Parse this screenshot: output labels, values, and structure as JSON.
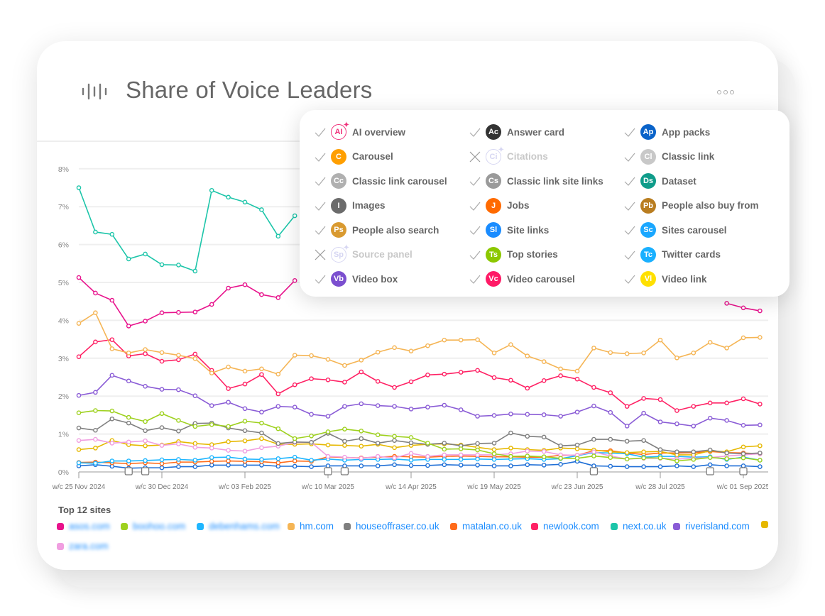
{
  "header": {
    "title": "Share of Voice Leaders",
    "icon": "sound-bars-icon",
    "menu_icon": "more-dots-icon"
  },
  "feature_filter": {
    "items": [
      {
        "abbr": "AI",
        "label": "AI overview",
        "color": "#f0307a",
        "enabled": true,
        "style": "outline",
        "sparkle": true
      },
      {
        "abbr": "Ac",
        "label": "Answer card",
        "color": "#333333",
        "enabled": true
      },
      {
        "abbr": "Ap",
        "label": "App packs",
        "color": "#0a63c9",
        "enabled": true
      },
      {
        "abbr": "C",
        "label": "Carousel",
        "color": "#ff9f00",
        "enabled": true
      },
      {
        "abbr": "Ci",
        "label": "Citations",
        "color": "#d6d6f2",
        "enabled": false,
        "style": "outline",
        "sparkle": true
      },
      {
        "abbr": "Cl",
        "label": "Classic link",
        "color": "#c8c8c8",
        "enabled": true
      },
      {
        "abbr": "Cc",
        "label": "Classic link carousel",
        "color": "#b0b0b0",
        "enabled": true
      },
      {
        "abbr": "Cs",
        "label": "Classic link site links",
        "color": "#9a9a9a",
        "enabled": true
      },
      {
        "abbr": "Ds",
        "label": "Dataset",
        "color": "#0f9c8a",
        "enabled": true
      },
      {
        "abbr": "I",
        "label": "Images",
        "color": "#6b6b6b",
        "enabled": true
      },
      {
        "abbr": "J",
        "label": "Jobs",
        "color": "#ff6a00",
        "enabled": true
      },
      {
        "abbr": "Pb",
        "label": "People also buy from",
        "color": "#b97d20",
        "enabled": true
      },
      {
        "abbr": "Ps",
        "label": "People also search",
        "color": "#d99a30",
        "enabled": true
      },
      {
        "abbr": "Sl",
        "label": "Site links",
        "color": "#1a8cff",
        "enabled": true
      },
      {
        "abbr": "Sc",
        "label": "Sites carousel",
        "color": "#1aa7ff",
        "enabled": true
      },
      {
        "abbr": "Sp",
        "label": "Source panel",
        "color": "#d6d6f2",
        "enabled": false,
        "style": "outline",
        "sparkle": true
      },
      {
        "abbr": "Ts",
        "label": "Top stories",
        "color": "#8cc800",
        "enabled": true
      },
      {
        "abbr": "Tc",
        "label": "Twitter cards",
        "color": "#1ab0ff",
        "enabled": true
      },
      {
        "abbr": "Vb",
        "label": "Video box",
        "color": "#7b4fcf",
        "enabled": true
      },
      {
        "abbr": "Vc",
        "label": "Video carousel",
        "color": "#ff1a66",
        "enabled": true
      },
      {
        "abbr": "Vl",
        "label": "Video link",
        "color": "#ffe000",
        "enabled": true
      }
    ]
  },
  "legend": {
    "title": "Top 12 sites",
    "items": [
      {
        "label": "asos.com",
        "color": "#e8128c",
        "blurred": true
      },
      {
        "label": "boohoo.com",
        "color": "#9ed11e",
        "blurred": true
      },
      {
        "label": "debenhams.com",
        "color": "#1fb6ff",
        "blurred": true
      },
      {
        "label": "hm.com",
        "color": "#f5b555"
      },
      {
        "label": "houseoffraser.co.uk",
        "color": "#7f7f7f"
      },
      {
        "label": "matalan.co.uk",
        "color": "#ff6b1a"
      },
      {
        "label": "newlook.com",
        "color": "#ff2164"
      },
      {
        "label": "next.co.uk",
        "color": "#1cc5a9"
      },
      {
        "label": "riverisland.com",
        "color": "#8a5cd6"
      },
      {
        "label": "",
        "color": "#e6b800"
      },
      {
        "label": "zara.com",
        "color": "#f09ee0",
        "blurred": true
      }
    ]
  },
  "chart_data": {
    "type": "line",
    "ylim": [
      0,
      8
    ],
    "y_ticks": [
      "0%",
      "1%",
      "2%",
      "3%",
      "4%",
      "5%",
      "6%",
      "7%",
      "8%"
    ],
    "grid": true,
    "x_tick_labels": [
      "w/c 25 Nov 2024",
      "w/c 30 Dec 2024",
      "w/c 03 Feb 2025",
      "w/c 10 Mar 2025",
      "w/c 14 Apr 2025",
      "w/c 19 May 2025",
      "w/c 23 Jun 2025",
      "w/c 28 Jul 2025",
      "w/c 01 Sep 2025"
    ],
    "x": [
      "2024-11-25",
      "2024-12-02",
      "2024-12-09",
      "2024-12-16",
      "2024-12-23",
      "2024-12-30",
      "2025-01-06",
      "2025-01-13",
      "2025-01-20",
      "2025-01-27",
      "2025-02-03",
      "2025-02-10",
      "2025-02-17",
      "2025-02-24",
      "2025-03-03",
      "2025-03-10",
      "2025-03-17",
      "2025-03-24",
      "2025-03-31",
      "2025-04-07",
      "2025-04-14",
      "2025-04-21",
      "2025-04-28",
      "2025-05-05",
      "2025-05-12",
      "2025-05-19",
      "2025-05-26",
      "2025-06-02",
      "2025-06-09",
      "2025-06-16",
      "2025-06-23",
      "2025-06-30",
      "2025-07-07",
      "2025-07-14",
      "2025-07-21",
      "2025-07-28",
      "2025-08-04",
      "2025-08-11",
      "2025-08-18",
      "2025-08-25",
      "2025-09-01",
      "2025-09-08"
    ],
    "annotation_markers": [
      "2024-12-16",
      "2024-12-23",
      "2025-03-10",
      "2025-03-17",
      "2025-06-30",
      "2025-08-18",
      "2025-09-01"
    ],
    "series": [
      {
        "name": "next.co.uk",
        "color": "#1cc5a9",
        "values": [
          7.5,
          6.33,
          6.27,
          5.62,
          5.75,
          5.47,
          5.46,
          5.3,
          7.43,
          7.25,
          7.12,
          6.92,
          6.22,
          6.76,
          null,
          null,
          null,
          null,
          null,
          null,
          null,
          null,
          null,
          null,
          null,
          null,
          null,
          null,
          null,
          null,
          null,
          null,
          null,
          null,
          null,
          null,
          null,
          null,
          null,
          null,
          null,
          null
        ]
      },
      {
        "name": "asos.com",
        "color": "#e8128c",
        "values": [
          5.13,
          4.72,
          4.53,
          3.85,
          3.98,
          4.2,
          4.21,
          4.22,
          4.42,
          4.85,
          4.94,
          4.68,
          4.6,
          5.05,
          null,
          null,
          null,
          null,
          null,
          null,
          null,
          null,
          null,
          null,
          null,
          null,
          null,
          null,
          null,
          null,
          null,
          null,
          null,
          null,
          null,
          null,
          null,
          null,
          null,
          4.45,
          4.33,
          4.25
        ]
      },
      {
        "name": "hm.com",
        "color": "#f5b555",
        "values": [
          3.92,
          4.2,
          3.25,
          3.14,
          3.23,
          3.15,
          3.08,
          2.99,
          2.61,
          2.77,
          2.66,
          2.72,
          2.58,
          3.08,
          3.07,
          2.97,
          2.81,
          2.95,
          3.16,
          3.28,
          3.19,
          3.33,
          3.48,
          3.48,
          3.49,
          3.14,
          3.36,
          3.06,
          2.91,
          2.72,
          2.66,
          3.27,
          3.15,
          3.12,
          3.14,
          3.48,
          3.01,
          3.14,
          3.42,
          3.27,
          3.54,
          3.55
        ]
      },
      {
        "name": "newlook.com",
        "color": "#ff2164",
        "values": [
          3.04,
          3.43,
          3.49,
          3.06,
          3.12,
          2.92,
          2.96,
          3.11,
          2.68,
          2.2,
          2.32,
          2.57,
          2.06,
          2.3,
          2.46,
          2.43,
          2.37,
          2.64,
          2.39,
          2.23,
          2.38,
          2.56,
          2.58,
          2.63,
          2.68,
          2.49,
          2.42,
          2.21,
          2.41,
          2.54,
          2.45,
          2.23,
          2.09,
          1.73,
          1.94,
          1.91,
          1.62,
          1.73,
          1.82,
          1.82,
          1.93,
          1.79
        ]
      },
      {
        "name": "riverisland.com",
        "color": "#8a5cd6",
        "values": [
          2.02,
          2.1,
          2.55,
          2.4,
          2.26,
          2.18,
          2.17,
          2.01,
          1.75,
          1.84,
          1.67,
          1.58,
          1.73,
          1.71,
          1.52,
          1.47,
          1.73,
          1.8,
          1.75,
          1.73,
          1.66,
          1.71,
          1.76,
          1.64,
          1.47,
          1.49,
          1.53,
          1.52,
          1.51,
          1.47,
          1.58,
          1.74,
          1.57,
          1.21,
          1.55,
          1.32,
          1.27,
          1.21,
          1.42,
          1.36,
          1.23,
          1.24
        ]
      },
      {
        "name": "boohoo.com",
        "color": "#9ed11e",
        "values": [
          1.56,
          1.62,
          1.61,
          1.44,
          1.33,
          1.54,
          1.36,
          1.2,
          1.25,
          1.2,
          1.34,
          1.29,
          1.14,
          0.88,
          0.95,
          1.06,
          1.13,
          1.08,
          0.98,
          0.94,
          0.91,
          0.76,
          0.6,
          0.61,
          0.58,
          0.48,
          0.41,
          0.42,
          0.4,
          0.36,
          0.36,
          0.42,
          0.38,
          0.34,
          0.37,
          0.37,
          0.29,
          0.33,
          0.38,
          0.35,
          0.37,
          0.31
        ]
      },
      {
        "name": "houseoffraser.co.uk",
        "color": "#7f7f7f",
        "values": [
          1.16,
          1.1,
          1.4,
          1.29,
          1.09,
          1.17,
          1.08,
          1.28,
          1.29,
          1.16,
          1.09,
          1.03,
          0.75,
          0.79,
          0.78,
          1.02,
          0.81,
          0.88,
          0.76,
          0.83,
          0.77,
          0.73,
          0.76,
          0.69,
          0.75,
          0.76,
          1.03,
          0.94,
          0.92,
          0.69,
          0.71,
          0.86,
          0.86,
          0.81,
          0.83,
          0.59,
          0.53,
          0.53,
          0.58,
          0.5,
          0.48,
          0.5
        ]
      },
      {
        "name": "zara.com",
        "color": "#f09ee0",
        "values": [
          0.83,
          0.86,
          0.76,
          0.79,
          0.82,
          0.7,
          0.74,
          0.65,
          0.63,
          0.57,
          0.55,
          0.64,
          0.68,
          0.78,
          0.78,
          0.41,
          0.39,
          0.36,
          0.41,
          0.37,
          0.49,
          0.41,
          0.45,
          0.45,
          0.45,
          0.45,
          0.48,
          0.55,
          0.54,
          0.45,
          0.44,
          0.53,
          0.42,
          0.34,
          0.36,
          0.36,
          0.34,
          0.36,
          0.38,
          0.42,
          0.45,
          0.48
        ]
      },
      {
        "name": "",
        "color": "#e6b800",
        "values": [
          0.59,
          0.63,
          0.83,
          0.72,
          0.69,
          0.71,
          0.8,
          0.75,
          0.72,
          0.8,
          0.82,
          0.88,
          0.73,
          0.73,
          0.74,
          0.71,
          0.7,
          0.68,
          0.73,
          0.64,
          0.7,
          0.73,
          0.74,
          0.71,
          0.65,
          0.59,
          0.63,
          0.59,
          0.57,
          0.63,
          0.61,
          0.58,
          0.53,
          0.51,
          0.53,
          0.54,
          0.45,
          0.45,
          0.56,
          0.53,
          0.66,
          0.69
        ]
      },
      {
        "name": "debenhams.com",
        "color": "#1fb6ff",
        "values": [
          0.24,
          0.23,
          0.29,
          0.29,
          0.3,
          0.32,
          0.33,
          0.31,
          0.38,
          0.39,
          0.34,
          0.33,
          0.35,
          0.39,
          0.31,
          0.34,
          0.31,
          0.33,
          0.33,
          0.34,
          0.31,
          0.33,
          0.33,
          0.33,
          0.34,
          0.33,
          0.34,
          0.35,
          0.33,
          0.35,
          0.43,
          0.51,
          0.5,
          0.48,
          0.39,
          0.41,
          0.41,
          0.39,
          0.4,
          0.33,
          0.39,
          0.31
        ]
      },
      {
        "name": "matalan.co.uk",
        "color": "#ff6b1a",
        "values": [
          0.25,
          0.26,
          0.24,
          0.22,
          0.24,
          0.22,
          0.26,
          0.26,
          0.28,
          0.29,
          0.28,
          0.27,
          0.24,
          0.29,
          0.28,
          0.4,
          0.38,
          0.37,
          0.39,
          0.41,
          0.4,
          0.39,
          0.41,
          0.42,
          0.41,
          0.4,
          0.4,
          0.39,
          0.39,
          0.44,
          0.44,
          0.56,
          0.56,
          0.5,
          0.46,
          0.5,
          0.5,
          0.51,
          0.54,
          0.51,
          0.5,
          0.48
        ]
      },
      {
        "color": "#1f6fd6",
        "values": [
          0.16,
          0.19,
          0.15,
          0.1,
          0.11,
          0.11,
          0.14,
          0.14,
          0.18,
          0.18,
          0.18,
          0.18,
          0.15,
          0.15,
          0.14,
          0.16,
          0.16,
          0.16,
          0.16,
          0.19,
          0.17,
          0.17,
          0.19,
          0.18,
          0.18,
          0.16,
          0.16,
          0.19,
          0.18,
          0.2,
          0.28,
          0.16,
          0.15,
          0.14,
          0.14,
          0.14,
          0.16,
          0.14,
          0.19,
          0.16,
          0.16,
          0.14
        ]
      }
    ]
  }
}
